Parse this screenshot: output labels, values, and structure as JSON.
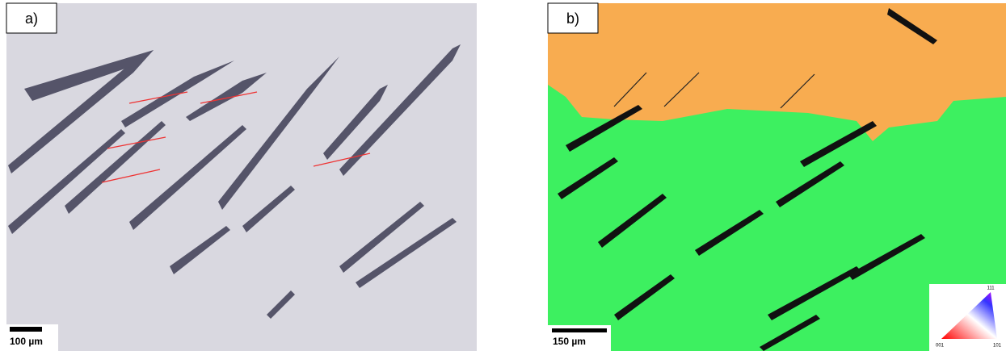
{
  "panels": [
    {
      "label": "a)",
      "scale_bar": "100 µm"
    },
    {
      "label": "b)",
      "scale_bar": "150 µm",
      "legend": {
        "top": "111",
        "bottom_left": "001",
        "bottom_right": "101"
      }
    }
  ]
}
